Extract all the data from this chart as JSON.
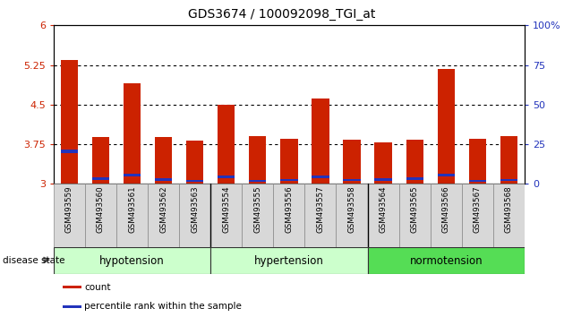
{
  "title": "GDS3674 / 100092098_TGI_at",
  "categories": [
    "GSM493559",
    "GSM493560",
    "GSM493561",
    "GSM493562",
    "GSM493563",
    "GSM493554",
    "GSM493555",
    "GSM493556",
    "GSM493557",
    "GSM493558",
    "GSM493564",
    "GSM493565",
    "GSM493566",
    "GSM493567",
    "GSM493568"
  ],
  "red_values": [
    5.35,
    3.88,
    4.9,
    3.88,
    3.82,
    4.5,
    3.9,
    3.86,
    4.62,
    3.84,
    3.78,
    3.83,
    5.18,
    3.86,
    3.9
  ],
  "blue_bottom": [
    3.58,
    3.07,
    3.14,
    3.05,
    3.04,
    3.1,
    3.04,
    3.05,
    3.1,
    3.05,
    3.06,
    3.08,
    3.14,
    3.04,
    3.05
  ],
  "blue_height": [
    0.07,
    0.05,
    0.06,
    0.05,
    0.04,
    0.055,
    0.04,
    0.04,
    0.055,
    0.04,
    0.04,
    0.05,
    0.06,
    0.04,
    0.04
  ],
  "bar_color": "#cc2200",
  "blue_color": "#2233bb",
  "ylim": [
    3.0,
    6.0
  ],
  "yticks": [
    3.0,
    3.75,
    4.5,
    5.25,
    6.0
  ],
  "ytick_labels": [
    "3",
    "3.75",
    "4.5",
    "5.25",
    "6"
  ],
  "right_ytick_vals": [
    3.0,
    3.75,
    4.5,
    5.25,
    6.0
  ],
  "right_ytick_labels": [
    "0",
    "25",
    "50",
    "75",
    "100%"
  ],
  "groups": [
    {
      "label": "hypotension",
      "start": 0,
      "end": 5,
      "color": "#ccffcc"
    },
    {
      "label": "hypertension",
      "start": 5,
      "end": 10,
      "color": "#ccffcc"
    },
    {
      "label": "normotension",
      "start": 10,
      "end": 15,
      "color": "#55dd55"
    }
  ],
  "disease_label": "disease state",
  "legend_items": [
    {
      "label": "count",
      "color": "#cc2200"
    },
    {
      "label": "percentile rank within the sample",
      "color": "#2233bb"
    }
  ],
  "bar_width": 0.55
}
